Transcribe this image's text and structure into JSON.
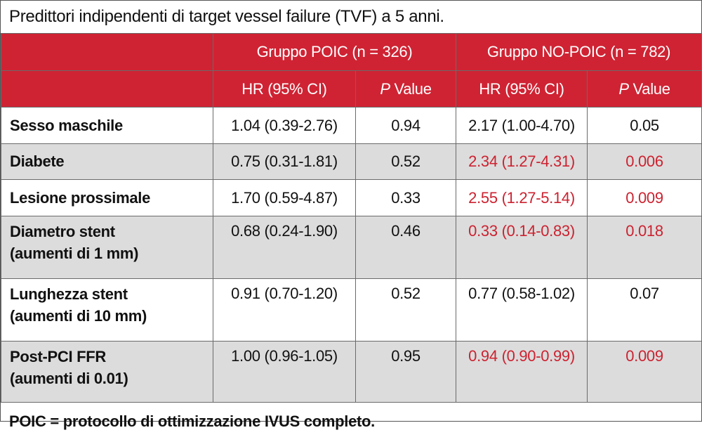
{
  "title": "Predittori indipendenti di target vessel failure (TVF) a 5 anni.",
  "groups": [
    {
      "label": "Gruppo POIC (n = 326)"
    },
    {
      "label": "Gruppo NO-POIC (n = 782)"
    }
  ],
  "subheaders": {
    "hr": "HR (95% CI)",
    "p_italic": "P",
    "p_rest": " Value"
  },
  "rows": [
    {
      "label": "Sesso maschile",
      "poic_hr": "1.04 (0.39-2.76)",
      "poic_p": "0.94",
      "nopoic_hr": "2.17 (1.00-4.70)",
      "nopoic_p": "0.05",
      "nopoic_significant": false
    },
    {
      "label": "Diabete",
      "poic_hr": "0.75 (0.31-1.81)",
      "poic_p": "0.52",
      "nopoic_hr": "2.34 (1.27-4.31)",
      "nopoic_p": "0.006",
      "nopoic_significant": true
    },
    {
      "label": "Lesione prossimale",
      "poic_hr": "1.70 (0.59-4.87)",
      "poic_p": "0.33",
      "nopoic_hr": "2.55 (1.27-5.14)",
      "nopoic_p": "0.009",
      "nopoic_significant": true
    },
    {
      "label": "Diametro stent",
      "label2": "(aumenti di 1 mm)",
      "poic_hr": "0.68 (0.24-1.90)",
      "poic_p": "0.46",
      "nopoic_hr": "0.33 (0.14-0.83)",
      "nopoic_p": "0.018",
      "nopoic_significant": true
    },
    {
      "label": "Lunghezza stent",
      "label2": "(aumenti di 10 mm)",
      "poic_hr": "0.91 (0.70-1.20)",
      "poic_p": "0.52",
      "nopoic_hr": "0.77 (0.58-1.02)",
      "nopoic_p": "0.07",
      "nopoic_significant": false
    },
    {
      "label": "Post-PCI FFR",
      "label2": "(aumenti di 0.01)",
      "poic_hr": "1.00 (0.96-1.05)",
      "poic_p": "0.95",
      "nopoic_hr": "0.94 (0.90-0.99)",
      "nopoic_p": "0.009",
      "nopoic_significant": true
    }
  ],
  "footnote": "POIC = protocollo di ottimizzazione IVUS completo.",
  "colors": {
    "header_bg": "#cf2333",
    "header_text": "#ffffff",
    "significant_text": "#cc2230",
    "alt_row_bg": "#dcdcdc"
  }
}
